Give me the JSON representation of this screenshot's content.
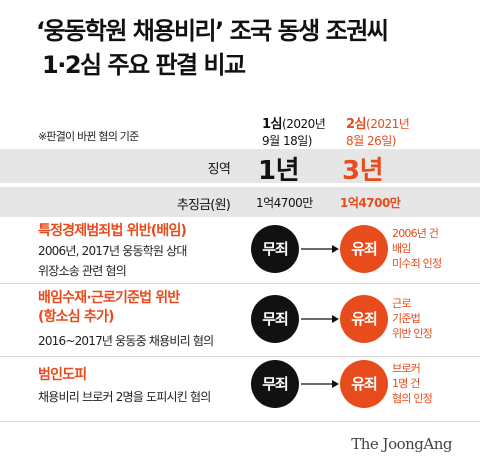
{
  "title": {
    "line1": "‘웅동학원 채용비리’ 조국 동생 조권씨",
    "line2": "1·2심 주요 판결 비교"
  },
  "table": {
    "note": "※판결이 바뀐 혐의 기준",
    "col1": {
      "label": "1심",
      "date_a": "(2020년",
      "date_b": "9월 18일)"
    },
    "col2": {
      "label": "2심",
      "date_a": "(2021년",
      "date_b": "8월 26일)"
    },
    "sentence": {
      "label": "징역",
      "first": "1년",
      "second": "3년"
    },
    "forfeit": {
      "label": "추징금(원)",
      "first": "1억4700만",
      "second": "1억4700만"
    }
  },
  "charges": [
    {
      "name": "특정경제범죄법 위반(배임)",
      "desc1": "2006년, 2017년 웅동학원 상대",
      "desc2": "위장소송 관련 혐의",
      "first": "무죄",
      "second": "유죄",
      "note": [
        "2006년 건",
        "배임",
        "미수죄 인정"
      ]
    },
    {
      "name": "배임수재·근로기준법 위반",
      "name2": "(항소심 추가)",
      "desc1": "2016~2017년 웅동중 채용비리 혐의",
      "first": "무죄",
      "second": "유죄",
      "note": [
        "근로",
        "기준법",
        "위반 인정"
      ]
    },
    {
      "name": "범인도피",
      "desc1": "채용비리 브로커 2명을 도피시킨 혐의",
      "first": "무죄",
      "second": "유죄",
      "note": [
        "브로커",
        "1명 건",
        "혐의 인정"
      ]
    }
  ],
  "source": "The JoongAng",
  "colors": {
    "accent": "#e84b1c",
    "dark": "#111111",
    "band": "#e6e6e6"
  }
}
